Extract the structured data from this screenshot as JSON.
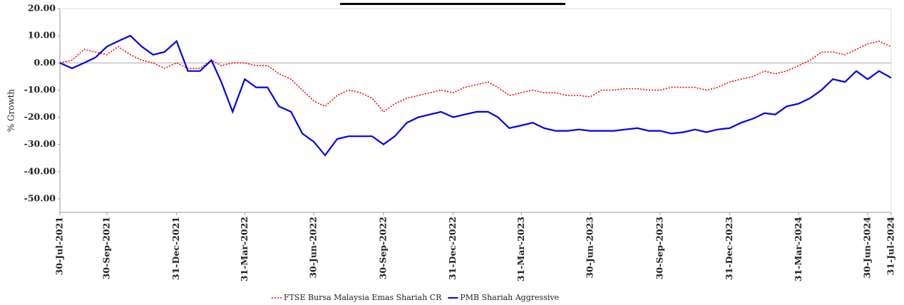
{
  "chart_data": {
    "type": "line",
    "y_label": "% Growth",
    "x": [
      "30-Jul-2021",
      "15-Aug-2021",
      "31-Aug-2021",
      "15-Sep-2021",
      "30-Sep-2021",
      "15-Oct-2021",
      "31-Oct-2021",
      "15-Nov-2021",
      "30-Nov-2021",
      "15-Dec-2021",
      "31-Dec-2021",
      "15-Jan-2022",
      "31-Jan-2022",
      "15-Feb-2022",
      "28-Feb-2022",
      "15-Mar-2022",
      "31-Mar-2022",
      "15-Apr-2022",
      "30-Apr-2022",
      "15-May-2022",
      "31-May-2022",
      "15-Jun-2022",
      "30-Jun-2022",
      "15-Jul-2022",
      "31-Jul-2022",
      "15-Aug-2022",
      "31-Aug-2022",
      "15-Sep-2022",
      "30-Sep-2022",
      "15-Oct-2022",
      "31-Oct-2022",
      "15-Nov-2022",
      "30-Nov-2022",
      "15-Dec-2022",
      "31-Dec-2022",
      "15-Jan-2023",
      "31-Jan-2023",
      "15-Feb-2023",
      "28-Feb-2023",
      "15-Mar-2023",
      "31-Mar-2023",
      "15-Apr-2023",
      "30-Apr-2023",
      "15-May-2023",
      "31-May-2023",
      "15-Jun-2023",
      "30-Jun-2023",
      "15-Jul-2023",
      "31-Jul-2023",
      "15-Aug-2023",
      "31-Aug-2023",
      "15-Sep-2023",
      "30-Sep-2023",
      "15-Oct-2023",
      "31-Oct-2023",
      "15-Nov-2023",
      "30-Nov-2023",
      "15-Dec-2023",
      "31-Dec-2023",
      "15-Jan-2024",
      "31-Jan-2024",
      "15-Feb-2024",
      "29-Feb-2024",
      "15-Mar-2024",
      "31-Mar-2024",
      "15-Apr-2024",
      "30-Apr-2024",
      "15-May-2024",
      "31-May-2024",
      "15-Jun-2024",
      "30-Jun-2024",
      "15-Jul-2024",
      "31-Jul-2024"
    ],
    "series": [
      {
        "name": "FTSE Bursa Malaysia Emas Shariah CR",
        "color": "#ff0000",
        "line_style": "dotted",
        "values": [
          0,
          1,
          5,
          4,
          3,
          6,
          3,
          1,
          0,
          -2,
          0,
          -2,
          -2,
          1,
          -1,
          0,
          0,
          -1,
          -1,
          -4,
          -6,
          -10,
          -14,
          -16,
          -12,
          -10,
          -11,
          -13,
          -18,
          -15,
          -13,
          -12,
          -11,
          -10,
          -11,
          -9,
          -8,
          -7,
          -9,
          -12,
          -11,
          -10,
          -11,
          -11,
          -12,
          -12,
          -12.5,
          -10,
          -10,
          -9.5,
          -9.5,
          -10,
          -10,
          -9,
          -9,
          -9,
          -10,
          -9,
          -7,
          -6,
          -5,
          -3,
          -4,
          -3,
          -1,
          1,
          4,
          4,
          3,
          5,
          7,
          8,
          6
        ]
      },
      {
        "name": "PMB Shariah Aggressive",
        "color": "#0000ee",
        "line_style": "solid",
        "values": [
          0,
          -2,
          0,
          2,
          6,
          8,
          10,
          6,
          3,
          4,
          8,
          -3,
          -3,
          1,
          -7,
          -18,
          -6,
          -9,
          -9,
          -16,
          -18,
          -26,
          -29,
          -34,
          -28,
          -27,
          -27,
          -27,
          -30,
          -27,
          -22,
          -20,
          -19,
          -18,
          -20,
          -19,
          -18,
          -18,
          -20,
          -24,
          -23,
          -22,
          -24,
          -25,
          -25,
          -24.5,
          -25,
          -25,
          -25,
          -24.5,
          -24,
          -25,
          -25,
          -26,
          -25.5,
          -24.5,
          -25.5,
          -24.5,
          -24,
          -22,
          -20.5,
          -18.5,
          -19,
          -16,
          -15,
          -13,
          -10,
          -6,
          -7,
          -3,
          -6,
          -3,
          -5.5
        ]
      }
    ],
    "xlim": [
      "30-Jul-2021",
      "31-Jul-2024"
    ],
    "xticks": [
      "30-Jul-2021",
      "30-Sep-2021",
      "31-Dec-2021",
      "31-Mar-2022",
      "30-Jun-2022",
      "30-Sep-2022",
      "31-Dec-2022",
      "31-Mar-2023",
      "30-Jun-2023",
      "30-Sep-2023",
      "31-Dec-2023",
      "31-Mar-2024",
      "30-Jun-2024",
      "31-Jul-2024"
    ],
    "ylim": [
      -55,
      20
    ],
    "yticks": [
      {
        "value": 20,
        "label": "20.00"
      },
      {
        "value": 10,
        "label": "10.00"
      },
      {
        "value": 0,
        "label": "0.00"
      },
      {
        "value": -10,
        "label": "-10.00"
      },
      {
        "value": -20,
        "label": "-20.00"
      },
      {
        "value": -30,
        "label": "-30.00"
      },
      {
        "value": -40,
        "label": "-40.00"
      },
      {
        "value": -50,
        "label": "-50.00"
      }
    ],
    "legend": "bottom"
  }
}
